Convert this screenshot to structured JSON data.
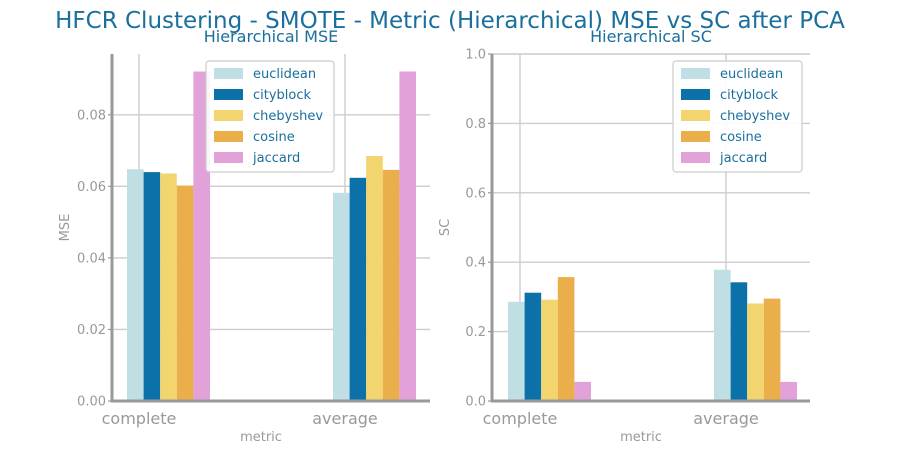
{
  "figure": {
    "title": "HFCR Clustering - SMOTE - Metric (Hierarchical) MSE vs SC after PCA"
  },
  "colors": {
    "title": "#1a6f9e",
    "axis": "#999999",
    "grid": "#cccccc",
    "label": "#999999",
    "legend_text": "#1a6f9e",
    "series": [
      "#bfdfe4",
      "#0c71a8",
      "#f2d56e",
      "#eaae4a",
      "#e2a1d8"
    ]
  },
  "chart_data": [
    {
      "type": "bar",
      "title": "Hierarchical MSE",
      "xlabel": "metric",
      "ylabel": "MSE",
      "categories": [
        "complete",
        "average"
      ],
      "ylim": [
        0,
        0.097
      ],
      "yticks": [
        0.0,
        0.02,
        0.04,
        0.06,
        0.08
      ],
      "ytick_labels": [
        "0.00",
        "0.02",
        "0.04",
        "0.06",
        "0.08"
      ],
      "grid": true,
      "legend": "top-right",
      "series": [
        {
          "name": "euclidean",
          "values": [
            0.0648,
            0.0582
          ]
        },
        {
          "name": "cityblock",
          "values": [
            0.064,
            0.0624
          ]
        },
        {
          "name": "chebyshev",
          "values": [
            0.0636,
            0.0685
          ]
        },
        {
          "name": "cosine",
          "values": [
            0.0602,
            0.0646
          ]
        },
        {
          "name": "jaccard",
          "values": [
            0.0921,
            0.0921
          ]
        }
      ]
    },
    {
      "type": "bar",
      "title": "Hierarchical SC",
      "xlabel": "metric",
      "ylabel": "SC",
      "categories": [
        "complete",
        "average"
      ],
      "ylim": [
        0,
        1.0
      ],
      "yticks": [
        0.0,
        0.2,
        0.4,
        0.6,
        0.8,
        1.0
      ],
      "ytick_labels": [
        "0.0",
        "0.2",
        "0.4",
        "0.6",
        "0.8",
        "1.0"
      ],
      "grid": true,
      "legend": "top-right",
      "series": [
        {
          "name": "euclidean",
          "values": [
            0.286,
            0.378
          ]
        },
        {
          "name": "cityblock",
          "values": [
            0.312,
            0.342
          ]
        },
        {
          "name": "chebyshev",
          "values": [
            0.292,
            0.281
          ]
        },
        {
          "name": "cosine",
          "values": [
            0.357,
            0.295
          ]
        },
        {
          "name": "jaccard",
          "values": [
            0.055,
            0.055
          ]
        }
      ]
    }
  ]
}
